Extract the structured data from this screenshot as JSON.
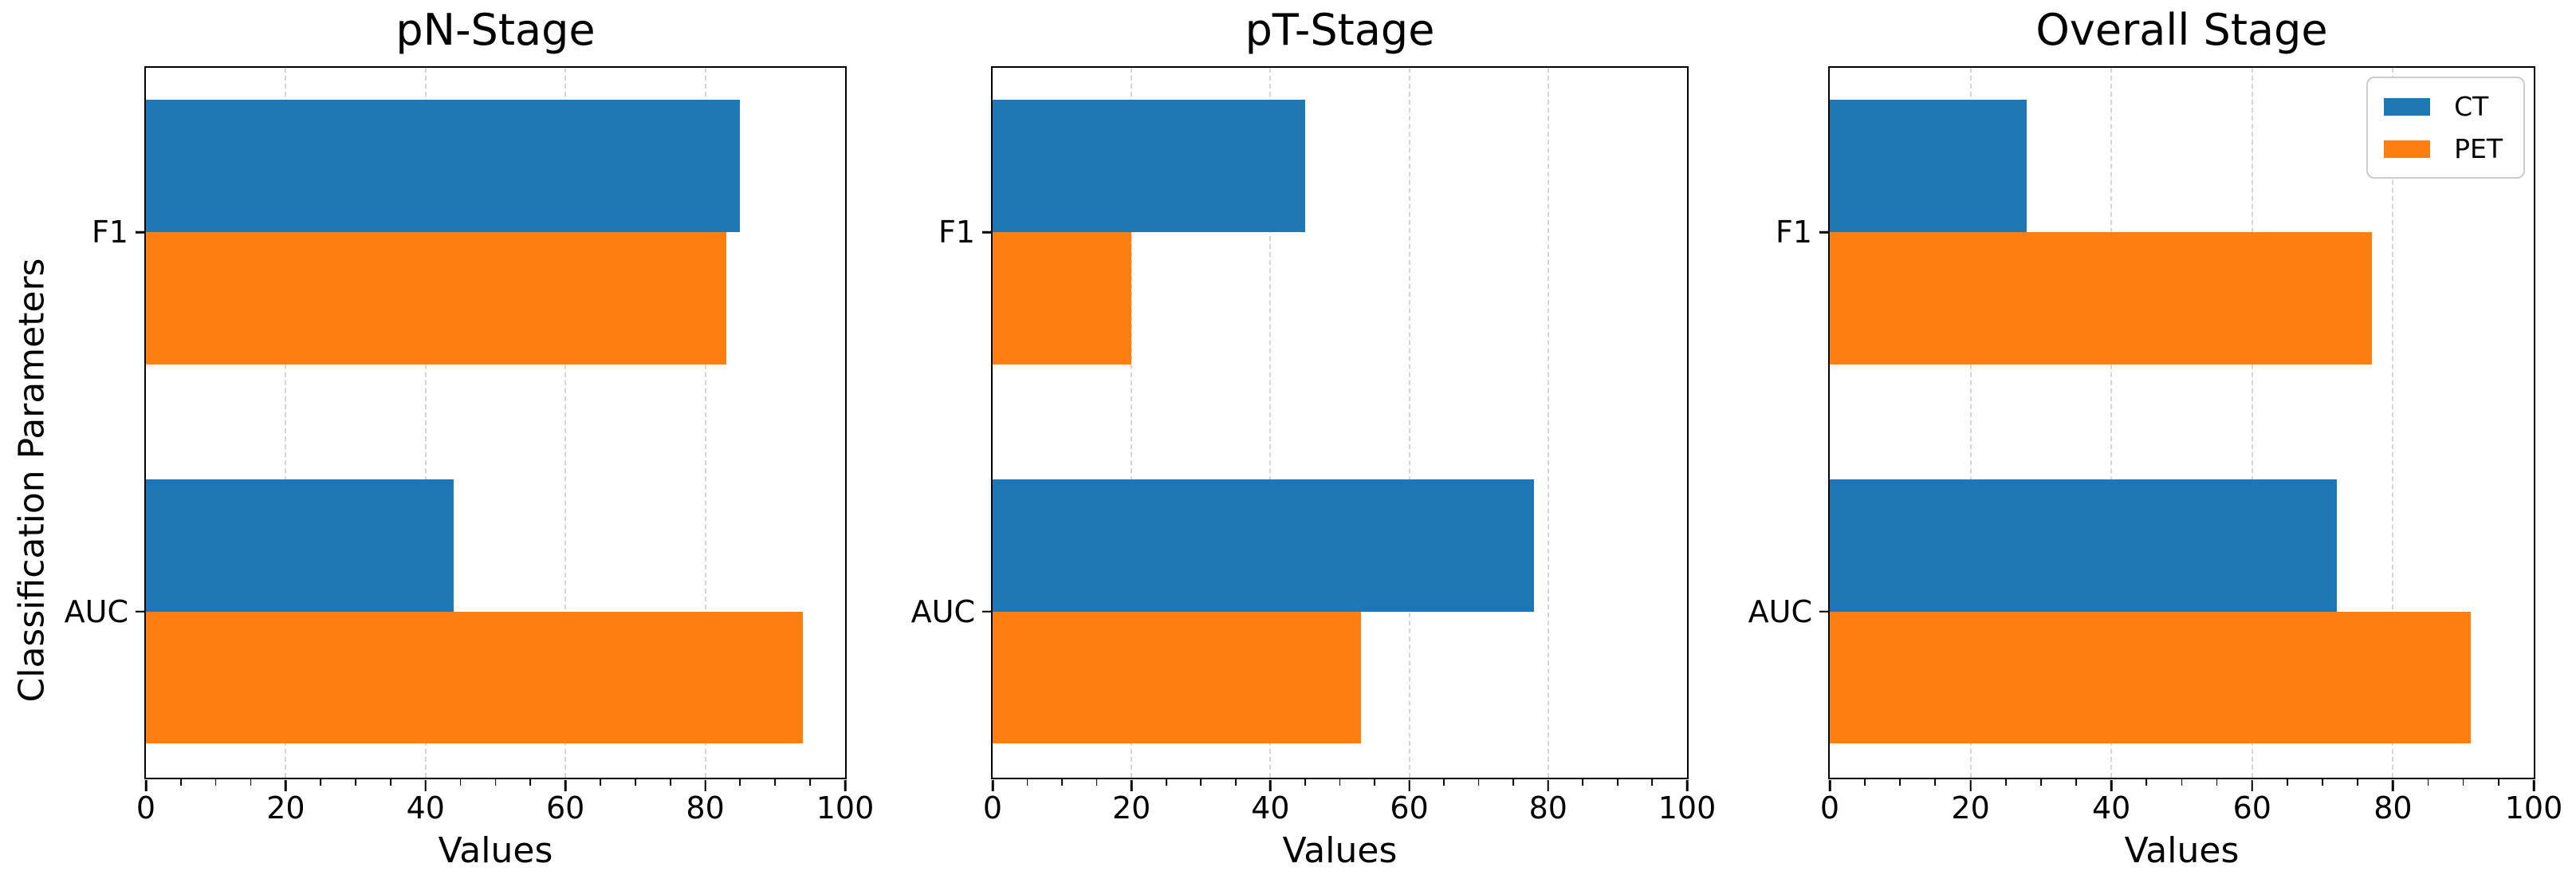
{
  "figure": {
    "ylabel": "Classification Parameters",
    "colors": {
      "ct_blue": "#1f77b4",
      "pet_orange": "#ff7f0e",
      "grid": "#d5d5d5",
      "spine": "#000000"
    },
    "legend": {
      "position": "top-right-of-third-subplot",
      "entries": [
        {
          "label": "CT",
          "color": "#1f77b4"
        },
        {
          "label": "PET",
          "color": "#ff7f0e"
        }
      ]
    }
  },
  "chart_data": [
    {
      "type": "bar",
      "orientation": "horizontal",
      "title": "pN-Stage",
      "xlabel": "Values",
      "ylabel": "Classification Parameters",
      "categories": [
        "F1",
        "AUC"
      ],
      "series": [
        {
          "name": "CT",
          "color": "#1f77b4",
          "values": [
            85,
            44
          ]
        },
        {
          "name": "PET",
          "color": "#ff7f0e",
          "values": [
            83,
            94
          ]
        }
      ],
      "xlim": [
        0,
        100
      ],
      "xticks": [
        0,
        20,
        40,
        60,
        80,
        100
      ],
      "grid": "vertical-dashed",
      "legend_shown": false
    },
    {
      "type": "bar",
      "orientation": "horizontal",
      "title": "pT-Stage",
      "xlabel": "Values",
      "ylabel": "",
      "categories": [
        "F1",
        "AUC"
      ],
      "series": [
        {
          "name": "CT",
          "color": "#1f77b4",
          "values": [
            45,
            78
          ]
        },
        {
          "name": "PET",
          "color": "#ff7f0e",
          "values": [
            20,
            53
          ]
        }
      ],
      "xlim": [
        0,
        100
      ],
      "xticks": [
        0,
        20,
        40,
        60,
        80,
        100
      ],
      "grid": "vertical-dashed",
      "legend_shown": false
    },
    {
      "type": "bar",
      "orientation": "horizontal",
      "title": "Overall Stage",
      "xlabel": "Values",
      "ylabel": "",
      "categories": [
        "F1",
        "AUC"
      ],
      "series": [
        {
          "name": "CT",
          "color": "#1f77b4",
          "values": [
            28,
            72
          ]
        },
        {
          "name": "PET",
          "color": "#ff7f0e",
          "values": [
            77,
            91
          ]
        }
      ],
      "xlim": [
        0,
        100
      ],
      "xticks": [
        0,
        20,
        40,
        60,
        80,
        100
      ],
      "grid": "vertical-dashed",
      "legend_shown": true
    }
  ]
}
